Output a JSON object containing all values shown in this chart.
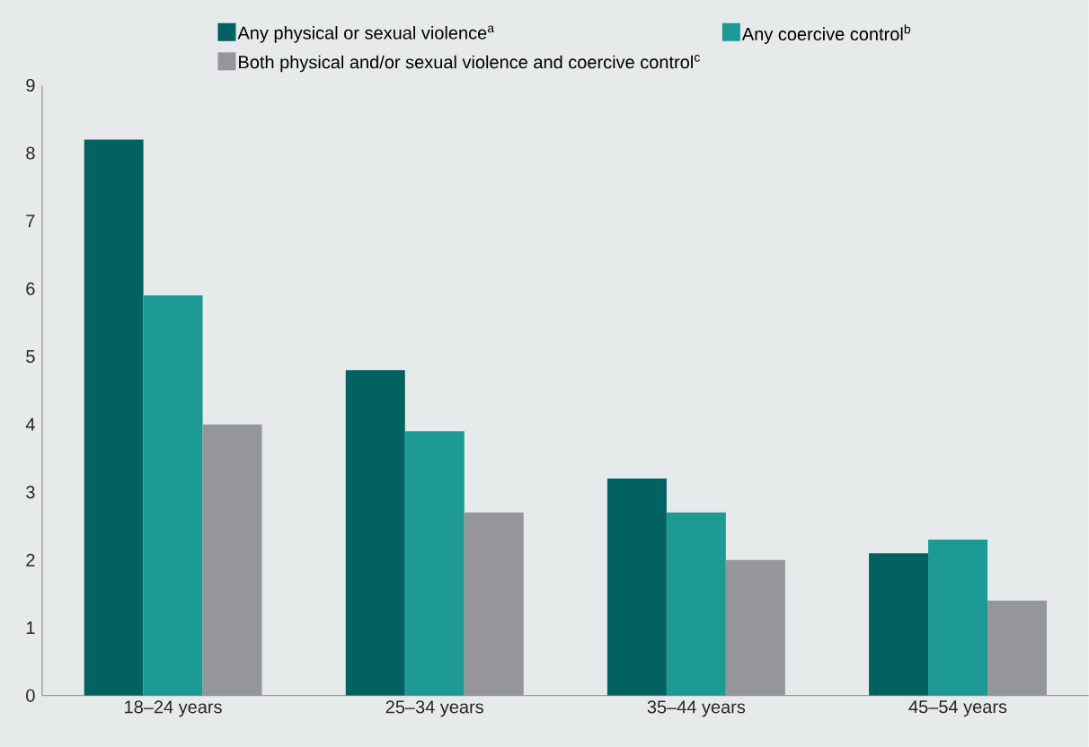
{
  "chart_data": {
    "type": "bar",
    "categories": [
      "18–24 years",
      "25–34 years",
      "35–44 years",
      "45–54 years"
    ],
    "series": [
      {
        "name": "Any physical or sexual violence$^{a}$",
        "color": "#026161",
        "values": [
          8.2,
          4.8,
          3.2,
          2.1
        ]
      },
      {
        "name": "Any coercive control$^{b}$",
        "color": "#1c9a93",
        "values": [
          5.9,
          3.9,
          2.7,
          2.3
        ]
      },
      {
        "name": "Both physical and/or sexual violence and coercive control$^{c}$",
        "color": "#959699",
        "values": [
          4.0,
          2.7,
          2.0,
          1.4
        ]
      }
    ],
    "ylim": [
      0,
      9
    ],
    "yticks": [
      0,
      1,
      2,
      3,
      4,
      5,
      6,
      7,
      8,
      9
    ],
    "legend": "top",
    "grid": false
  }
}
